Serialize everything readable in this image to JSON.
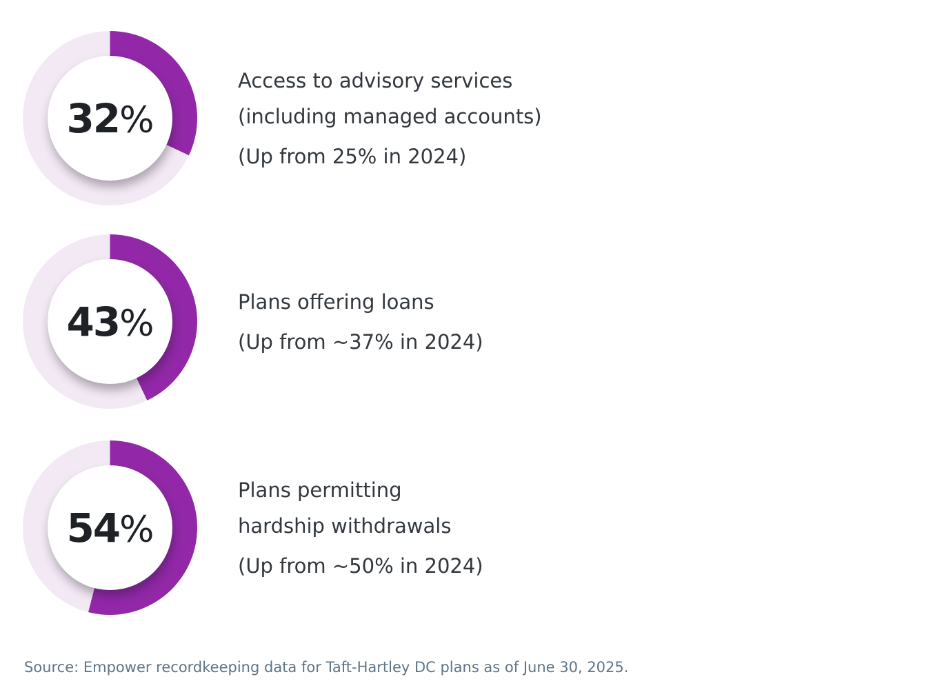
{
  "chart_data": {
    "type": "donut",
    "unit": "%",
    "legend_position": "none",
    "colors": {
      "arc": "#9228a8",
      "track": "#f3e9f5",
      "value_text": "#1e2125",
      "label_text": "#32383e",
      "source_text": "#5e7487"
    },
    "items": [
      {
        "value": 32,
        "label_lines": [
          "Access to advisory services",
          "(including managed accounts)"
        ],
        "note": "(Up from 25% in 2024)"
      },
      {
        "value": 43,
        "label_lines": [
          "Plans offering loans"
        ],
        "note": "(Up from ~37% in 2024)"
      },
      {
        "value": 54,
        "label_lines": [
          "Plans permitting",
          "hardship withdrawals"
        ],
        "note": "(Up from ~50% in 2024)"
      }
    ],
    "source": "Source: Empower recordkeeping data for Taft-Hartley DC plans as of June 30, 2025."
  }
}
